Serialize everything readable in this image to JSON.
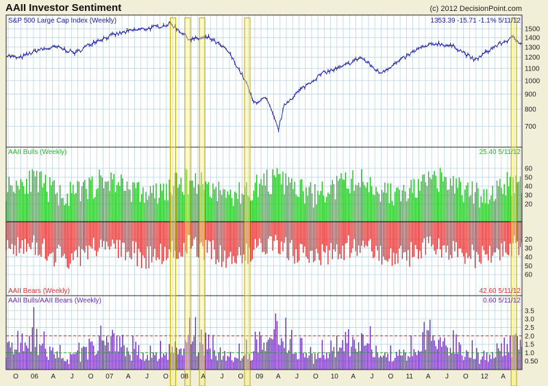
{
  "header": {
    "title": "AAII Investor Sentiment",
    "copyright": "(c) 2012 DecisionPoint.com"
  },
  "colors": {
    "price": "#1a1aa0",
    "bulls": "#22bb22",
    "bears": "#e03030",
    "ratio": "#6a2cb8",
    "highlight": "#fff07a",
    "grid": "#b7d3e6"
  },
  "chart_data": [
    {
      "type": "line",
      "title": "S&P 500 Large Cap Index (Weekly)",
      "last_label": "1353.39  -15.71  -1.1%  5/11/12",
      "x": [
        "2005-08",
        "2005-10",
        "2006-01",
        "2006-04",
        "2006-07",
        "2006-10",
        "2007-01",
        "2007-04",
        "2007-07",
        "2007-10",
        "2008-01",
        "2008-04",
        "2008-07",
        "2008-10",
        "2008-11",
        "2009-01",
        "2009-03",
        "2009-04",
        "2009-07",
        "2009-10",
        "2010-01",
        "2010-04",
        "2010-07",
        "2010-10",
        "2011-01",
        "2011-04",
        "2011-07",
        "2011-10",
        "2012-01",
        "2012-04",
        "2012-05"
      ],
      "values": [
        1220,
        1190,
        1270,
        1300,
        1240,
        1360,
        1430,
        1480,
        1510,
        1560,
        1380,
        1400,
        1260,
        970,
        840,
        870,
        680,
        830,
        950,
        1060,
        1110,
        1200,
        1060,
        1160,
        1280,
        1340,
        1300,
        1170,
        1300,
        1400,
        1353
      ],
      "ylim": [
        620,
        1600
      ],
      "yticks": [
        700,
        800,
        900,
        1000,
        1100,
        1200,
        1300,
        1400,
        1500
      ],
      "ytick_labels": [
        "700",
        "800",
        "900",
        "1000",
        "1100",
        "1200",
        "1300",
        "1400",
        "1500"
      ]
    },
    {
      "type": "bar",
      "title": "AAII Bulls (Weekly)",
      "last_label": "25.40  5/11/12",
      "ylim": [
        0,
        70
      ],
      "yticks": [
        20,
        30,
        40,
        50,
        60
      ],
      "ytick_labels": [
        "20",
        "30",
        "40",
        "50",
        "60"
      ]
    },
    {
      "type": "bar",
      "title": "AAII Bears (Weekly)",
      "last_label": "42.60  5/11/12",
      "ylim": [
        0,
        70
      ],
      "yticks": [
        20,
        30,
        40,
        50,
        60
      ],
      "ytick_labels": [
        "20",
        "30",
        "40",
        "50",
        "60"
      ]
    },
    {
      "type": "bar",
      "title": "AAII Bulls/AAII Bears (Weekly)",
      "last_label": "0.60  5/11/12",
      "ylim": [
        0,
        3.9
      ],
      "yticks": [
        0.5,
        1.0,
        1.5,
        2.0,
        2.5,
        3.0,
        3.5
      ],
      "ytick_labels": [
        "0.50",
        "1.0",
        "1.5",
        "2.0",
        "2.5",
        "3.0",
        "3.5"
      ],
      "reference_lines": [
        1.0,
        2.0
      ]
    }
  ],
  "xaxis": {
    "labels": [
      "O",
      "06",
      "A",
      "J",
      "O",
      "07",
      "A",
      "J",
      "O",
      "08",
      "A",
      "J",
      "O",
      "09",
      "A",
      "J",
      "O",
      "10",
      "A",
      "J",
      "O",
      "11",
      "A",
      "J",
      "O",
      "12",
      "A"
    ],
    "start": "2005-08",
    "end": "2012-05"
  },
  "highlight_dates": [
    "2007-10-12",
    "2007-12-21",
    "2008-02-29",
    "2008-10-03",
    "2012-04-06"
  ]
}
